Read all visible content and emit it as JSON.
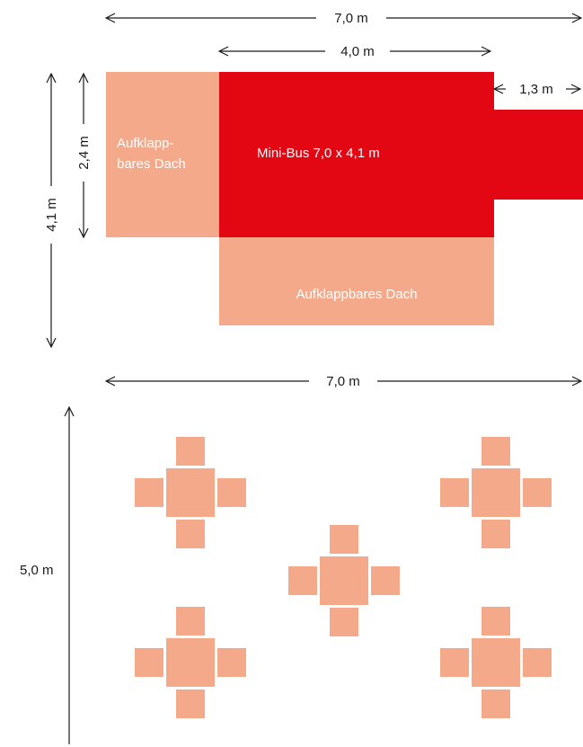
{
  "colors": {
    "bus": "#e30613",
    "roof": "#f5a98b",
    "table": "#f5a98b",
    "line": "#1a1a1a"
  },
  "top_plan": {
    "overall_width": "7,0 m",
    "bus_body_width": "4,0 m",
    "cab_width": "1,3 m",
    "overall_depth": "4,1 m",
    "bus_depth": "2,4 m",
    "bus_label": "Mini-Bus 7,0 x 4,1 m",
    "side_roof_label_line1": "Aufklapp-",
    "side_roof_label_line2": "bares Dach",
    "bottom_roof_label": "Aufklappbares Dach"
  },
  "seating_plan": {
    "width": "7,0 m",
    "depth": "5,0 m",
    "table_groups": 5,
    "chairs_per_table": 4
  }
}
